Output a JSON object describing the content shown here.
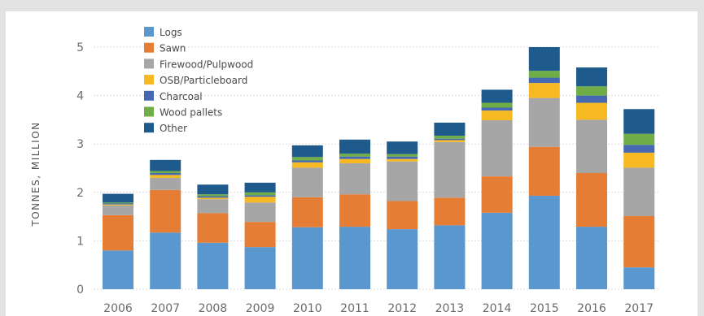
{
  "chart_data": {
    "type": "bar",
    "stacked": true,
    "title": "",
    "xlabel": "",
    "ylabel": "TONNES, MILLION",
    "ylim": [
      0,
      5
    ],
    "yticks": [
      0,
      1,
      2,
      3,
      4,
      5
    ],
    "grid": true,
    "legend_position": "top-left",
    "categories": [
      "2006",
      "2007",
      "2008",
      "2009",
      "2010",
      "2011",
      "2012",
      "2013",
      "2014",
      "2015",
      "2016",
      "2017"
    ],
    "series": [
      {
        "name": "Logs",
        "color": "#5b97cf",
        "values": [
          0.8,
          1.17,
          0.96,
          0.87,
          1.28,
          1.29,
          1.24,
          1.32,
          1.58,
          1.93,
          1.29,
          0.45
        ]
      },
      {
        "name": "Sawn",
        "color": "#e67d35",
        "values": [
          0.73,
          0.88,
          0.61,
          0.52,
          0.62,
          0.67,
          0.58,
          0.57,
          0.75,
          1.01,
          1.11,
          1.06
        ]
      },
      {
        "name": "Firewood/Pulpwood",
        "color": "#a6a6a6",
        "values": [
          0.2,
          0.25,
          0.29,
          0.4,
          0.61,
          0.64,
          0.82,
          1.15,
          1.16,
          1.01,
          1.1,
          1.0
        ]
      },
      {
        "name": "OSB/Particleboard",
        "color": "#f7b921",
        "values": [
          0.02,
          0.06,
          0.03,
          0.12,
          0.11,
          0.09,
          0.05,
          0.04,
          0.2,
          0.31,
          0.35,
          0.31
        ]
      },
      {
        "name": "Charcoal",
        "color": "#4468b2",
        "values": [
          0.02,
          0.04,
          0.03,
          0.03,
          0.04,
          0.05,
          0.05,
          0.03,
          0.06,
          0.11,
          0.15,
          0.16
        ]
      },
      {
        "name": "Wood pallets",
        "color": "#70ad47",
        "values": [
          0.02,
          0.04,
          0.04,
          0.06,
          0.07,
          0.06,
          0.05,
          0.06,
          0.1,
          0.14,
          0.19,
          0.23
        ]
      },
      {
        "name": "Other",
        "color": "#1f5a8c",
        "values": [
          0.18,
          0.23,
          0.2,
          0.2,
          0.24,
          0.29,
          0.26,
          0.27,
          0.27,
          0.49,
          0.39,
          0.51
        ]
      }
    ]
  }
}
